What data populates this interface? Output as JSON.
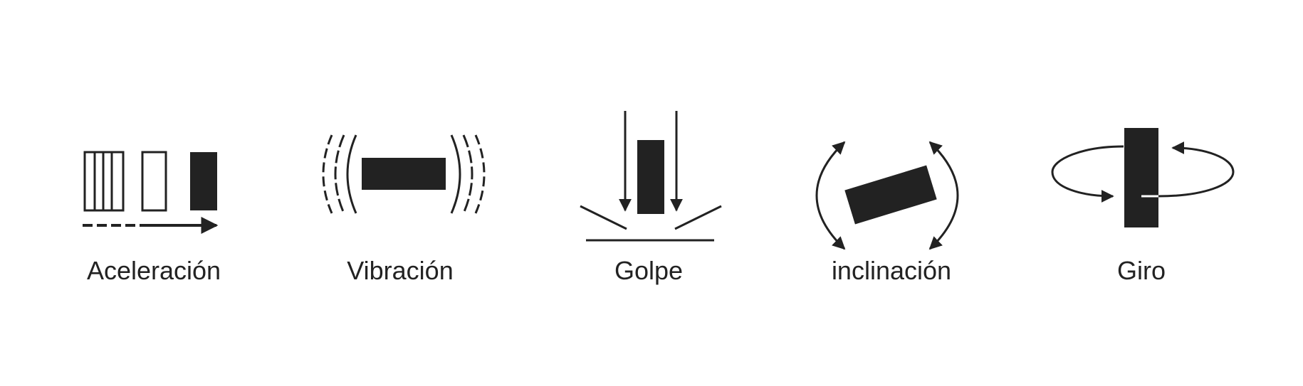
{
  "colors": {
    "background": "#ffffff",
    "ink": "#222222"
  },
  "icons": [
    {
      "name": "acceleration-icon",
      "label": "Aceleración"
    },
    {
      "name": "vibration-icon",
      "label": "Vibración"
    },
    {
      "name": "shock-icon",
      "label": "Golpe"
    },
    {
      "name": "tilt-icon",
      "label": "inclinación"
    },
    {
      "name": "rotation-icon",
      "label": "Giro"
    }
  ]
}
